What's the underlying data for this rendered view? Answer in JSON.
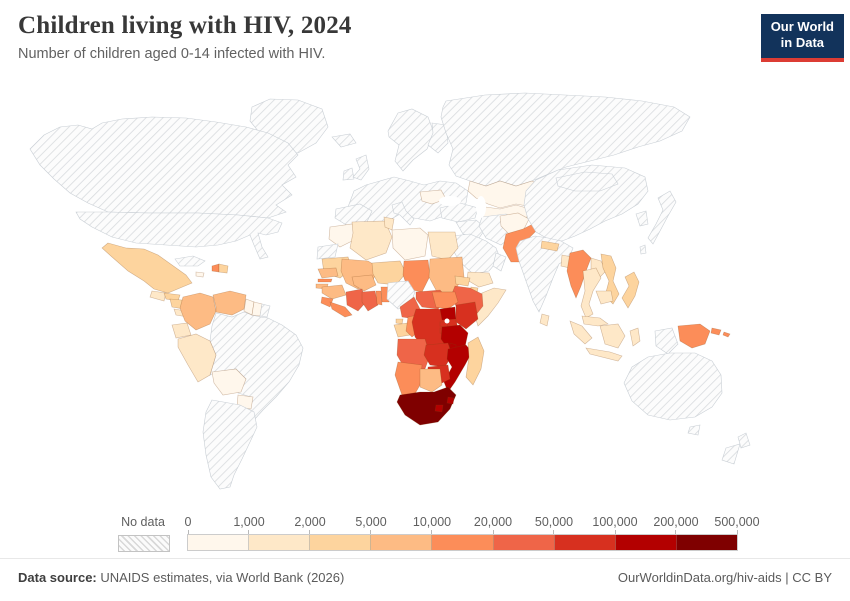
{
  "header": {
    "title": "Children living with HIV, 2024",
    "subtitle": "Number of children aged 0-14 infected with HIV.",
    "logo_line1": "Our World",
    "logo_line2": "in Data",
    "logo_bg": "#12335b",
    "logo_accent": "#dc3c34"
  },
  "legend": {
    "no_data_label": "No data",
    "ticks": [
      "0",
      "1,000",
      "2,000",
      "5,000",
      "10,000",
      "20,000",
      "50,000",
      "100,000",
      "200,000",
      "500,000"
    ],
    "colors": [
      "#fff7ec",
      "#fee8c8",
      "#fdd49e",
      "#fdbb84",
      "#fc8d59",
      "#ef6548",
      "#d7301f",
      "#b30000",
      "#7f0000"
    ]
  },
  "footer": {
    "source_label": "Data source:",
    "source_text": " UNAIDS estimates, via World Bank (2026)",
    "credit": "OurWorldinData.org/hiv-aids | CC BY"
  },
  "map": {
    "ocean": "#ffffff",
    "countries": [
      {
        "id": "greenland",
        "name": "Greenland",
        "fill": "no-data"
      },
      {
        "id": "canada",
        "name": "Canada",
        "fill": "no-data"
      },
      {
        "id": "usa",
        "name": "United States",
        "fill": "no-data"
      },
      {
        "id": "cuba",
        "name": "Cuba",
        "fill": "no-data"
      },
      {
        "id": "french-guiana",
        "name": "French Guiana",
        "fill": "no-data"
      },
      {
        "id": "brazil",
        "name": "Brazil",
        "fill": "no-data"
      },
      {
        "id": "southern-cone",
        "name": "Argentina and Chile",
        "fill": "no-data"
      },
      {
        "id": "iceland",
        "name": "Iceland",
        "fill": "no-data"
      },
      {
        "id": "ireland",
        "name": "Ireland",
        "fill": "no-data"
      },
      {
        "id": "uk",
        "name": "United Kingdom",
        "fill": "no-data"
      },
      {
        "id": "scandinavia",
        "name": "Scandinavia",
        "fill": "no-data"
      },
      {
        "id": "finland",
        "name": "Finland",
        "fill": "no-data"
      },
      {
        "id": "continental-europe",
        "name": "Europe",
        "fill": "no-data"
      },
      {
        "id": "spain",
        "name": "Spain",
        "fill": "no-data"
      },
      {
        "id": "italy",
        "name": "Italy",
        "fill": "no-data"
      },
      {
        "id": "romania",
        "name": "Romania",
        "fill": "#fff7ec"
      },
      {
        "id": "russia",
        "name": "Russia",
        "fill": "no-data"
      },
      {
        "id": "turkey",
        "name": "Turkey",
        "fill": "no-data"
      },
      {
        "id": "syria-iraq",
        "name": "Syria and Iraq",
        "fill": "no-data"
      },
      {
        "id": "iran",
        "name": "Iran",
        "fill": "no-data"
      },
      {
        "id": "saudi-arabia",
        "name": "Saudi Arabia",
        "fill": "no-data"
      },
      {
        "id": "oman",
        "name": "Oman",
        "fill": "no-data"
      },
      {
        "id": "india",
        "name": "India",
        "fill": "no-data"
      },
      {
        "id": "china",
        "name": "China",
        "fill": "no-data"
      },
      {
        "id": "mongolia",
        "name": "Mongolia",
        "fill": "no-data"
      },
      {
        "id": "korea",
        "name": "South Korea",
        "fill": "no-data"
      },
      {
        "id": "japan",
        "name": "Japan",
        "fill": "no-data"
      },
      {
        "id": "taiwan",
        "name": "Taiwan",
        "fill": "no-data"
      },
      {
        "id": "indonesian-papua",
        "name": "Papua (Indonesia)",
        "fill": "no-data"
      },
      {
        "id": "australia",
        "name": "Australia",
        "fill": "no-data"
      },
      {
        "id": "tasmania",
        "name": "Tasmania",
        "fill": "no-data"
      },
      {
        "id": "new-zealand",
        "name": "New Zealand",
        "fill": "no-data"
      },
      {
        "id": "western-sahara",
        "name": "Western Sahara",
        "fill": "no-data"
      },
      {
        "id": "nigeria",
        "name": "Nigeria",
        "fill": "no-data"
      },
      {
        "id": "mexico",
        "name": "Mexico",
        "fill": "#fdd49e"
      },
      {
        "id": "guatemala",
        "name": "Guatemala",
        "fill": "#fee8c8"
      },
      {
        "id": "honduras",
        "name": "Honduras",
        "fill": "#fdd49e"
      },
      {
        "id": "nicaragua",
        "name": "Nicaragua",
        "fill": "#fdd49e"
      },
      {
        "id": "costa-rica",
        "name": "Costa Rica",
        "fill": "#fee8c8"
      },
      {
        "id": "panama",
        "name": "Panama",
        "fill": "#fdd49e"
      },
      {
        "id": "jamaica",
        "name": "Jamaica",
        "fill": "#fff7ec"
      },
      {
        "id": "haiti",
        "name": "Haiti",
        "fill": "#fc8d59"
      },
      {
        "id": "dominican-republic",
        "name": "Dominican Republic",
        "fill": "#fdd49e"
      },
      {
        "id": "colombia",
        "name": "Colombia",
        "fill": "#fdbb84"
      },
      {
        "id": "venezuela",
        "name": "Venezuela",
        "fill": "#fdbb84"
      },
      {
        "id": "guyana",
        "name": "Guyana",
        "fill": "#fff7ec"
      },
      {
        "id": "suriname",
        "name": "Suriname",
        "fill": "#fff7ec"
      },
      {
        "id": "ecuador",
        "name": "Ecuador",
        "fill": "#fee8c8"
      },
      {
        "id": "peru",
        "name": "Peru",
        "fill": "#fee8c8"
      },
      {
        "id": "bolivia",
        "name": "Bolivia",
        "fill": "#fff7ec"
      },
      {
        "id": "paraguay",
        "name": "Paraguay",
        "fill": "#fff7ec"
      },
      {
        "id": "kazakhstan",
        "name": "Kazakhstan",
        "fill": "#fff7ec"
      },
      {
        "id": "central-asia",
        "name": "Central Asia",
        "fill": "#fff7ec"
      },
      {
        "id": "afghanistan",
        "name": "Afghanistan",
        "fill": "#fff7ec"
      },
      {
        "id": "pakistan",
        "name": "Pakistan",
        "fill": "#fc8d59"
      },
      {
        "id": "nepal",
        "name": "Nepal",
        "fill": "#fdd49e"
      },
      {
        "id": "bangladesh",
        "name": "Bangladesh",
        "fill": "#fee8c8"
      },
      {
        "id": "sri-lanka",
        "name": "Sri Lanka",
        "fill": "#fee8c8"
      },
      {
        "id": "myanmar",
        "name": "Myanmar",
        "fill": "#fc8d59"
      },
      {
        "id": "thailand",
        "name": "Thailand",
        "fill": "#fee8c8"
      },
      {
        "id": "laos",
        "name": "Laos",
        "fill": "#fee8c8"
      },
      {
        "id": "vietnam",
        "name": "Vietnam",
        "fill": "#fdd49e"
      },
      {
        "id": "cambodia",
        "name": "Cambodia",
        "fill": "#fee8c8"
      },
      {
        "id": "malaysia",
        "name": "Malaysia",
        "fill": "#fee8c8"
      },
      {
        "id": "indonesia",
        "name": "Indonesia",
        "fill": "#fee8c8"
      },
      {
        "id": "papua-new-guinea",
        "name": "Papua New Guinea",
        "fill": "#fc8d59"
      },
      {
        "id": "philippines",
        "name": "Philippines",
        "fill": "#fdd49e"
      },
      {
        "id": "yemen",
        "name": "Yemen",
        "fill": "#fee8c8"
      },
      {
        "id": "morocco",
        "name": "Morocco",
        "fill": "#fff7ec"
      },
      {
        "id": "algeria",
        "name": "Algeria",
        "fill": "#fee8c8"
      },
      {
        "id": "tunisia",
        "name": "Tunisia",
        "fill": "#fee8c8"
      },
      {
        "id": "libya",
        "name": "Libya",
        "fill": "#fff7ec"
      },
      {
        "id": "egypt",
        "name": "Egypt",
        "fill": "#fee8c8"
      },
      {
        "id": "mauritania",
        "name": "Mauritania",
        "fill": "#fdd49e"
      },
      {
        "id": "mali",
        "name": "Mali",
        "fill": "#fdbb84"
      },
      {
        "id": "niger",
        "name": "Niger",
        "fill": "#fdd49e"
      },
      {
        "id": "chad",
        "name": "Chad",
        "fill": "#fc8d59"
      },
      {
        "id": "sudan",
        "name": "Sudan",
        "fill": "#fdbb84"
      },
      {
        "id": "eritrea",
        "name": "Eritrea",
        "fill": "#fdd49e"
      },
      {
        "id": "djibouti",
        "name": "Djibouti",
        "fill": "#fdd49e"
      },
      {
        "id": "ethiopia",
        "name": "Ethiopia",
        "fill": "#ef6548"
      },
      {
        "id": "somalia",
        "name": "Somalia",
        "fill": "#fee8c8"
      },
      {
        "id": "senegal",
        "name": "Senegal",
        "fill": "#fdbb84"
      },
      {
        "id": "gambia",
        "name": "Gambia",
        "fill": "#fc8d59"
      },
      {
        "id": "guinea-bissau",
        "name": "Guinea-Bissau",
        "fill": "#fdbb84"
      },
      {
        "id": "guinea",
        "name": "Guinea",
        "fill": "#fdbb84"
      },
      {
        "id": "sierra-leone",
        "name": "Sierra Leone",
        "fill": "#fc8d59"
      },
      {
        "id": "liberia",
        "name": "Liberia",
        "fill": "#fc8d59"
      },
      {
        "id": "cote-divoire",
        "name": "Cote d'Ivoire",
        "fill": "#ef6548"
      },
      {
        "id": "ghana",
        "name": "Ghana",
        "fill": "#ef6548"
      },
      {
        "id": "togo",
        "name": "Togo",
        "fill": "#fc8d59"
      },
      {
        "id": "benin",
        "name": "Benin",
        "fill": "#fc8d59"
      },
      {
        "id": "burkina-faso",
        "name": "Burkina Faso",
        "fill": "#fdbb84"
      },
      {
        "id": "cameroon",
        "name": "Cameroon",
        "fill": "#ef6548"
      },
      {
        "id": "central-african-republic",
        "name": "Central African Republic",
        "fill": "#ef6548"
      },
      {
        "id": "south-sudan",
        "name": "South Sudan",
        "fill": "#fc8d59"
      },
      {
        "id": "equatorial-guinea",
        "name": "Equatorial Guinea",
        "fill": "#fdd49e"
      },
      {
        "id": "gabon",
        "name": "Gabon",
        "fill": "#fdd49e"
      },
      {
        "id": "congo",
        "name": "Congo",
        "fill": "#fc8d59"
      },
      {
        "id": "drc",
        "name": "Democratic Republic of Congo",
        "fill": "#d7301f"
      },
      {
        "id": "uganda",
        "name": "Uganda",
        "fill": "#b30000"
      },
      {
        "id": "kenya",
        "name": "Kenya",
        "fill": "#d7301f"
      },
      {
        "id": "rwanda",
        "name": "Rwanda",
        "fill": "#d7301f"
      },
      {
        "id": "burundi",
        "name": "Burundi",
        "fill": "#d7301f"
      },
      {
        "id": "tanzania",
        "name": "Tanzania",
        "fill": "#b30000"
      },
      {
        "id": "malawi",
        "name": "Malawi",
        "fill": "#b30000"
      },
      {
        "id": "angola",
        "name": "Angola",
        "fill": "#ef6548"
      },
      {
        "id": "zambia",
        "name": "Zambia",
        "fill": "#d7301f"
      },
      {
        "id": "mozambique",
        "name": "Mozambique",
        "fill": "#b30000"
      },
      {
        "id": "zimbabwe",
        "name": "Zimbabwe",
        "fill": "#d7301f"
      },
      {
        "id": "namibia",
        "name": "Namibia",
        "fill": "#fc8d59"
      },
      {
        "id": "botswana",
        "name": "Botswana",
        "fill": "#fdbb84"
      },
      {
        "id": "south-africa",
        "name": "South Africa",
        "fill": "#7f0000"
      },
      {
        "id": "lesotho",
        "name": "Lesotho",
        "fill": "#b30000"
      },
      {
        "id": "eswatini",
        "name": "Eswatini",
        "fill": "#b30000"
      },
      {
        "id": "madagascar",
        "name": "Madagascar",
        "fill": "#fdd49e"
      }
    ]
  }
}
